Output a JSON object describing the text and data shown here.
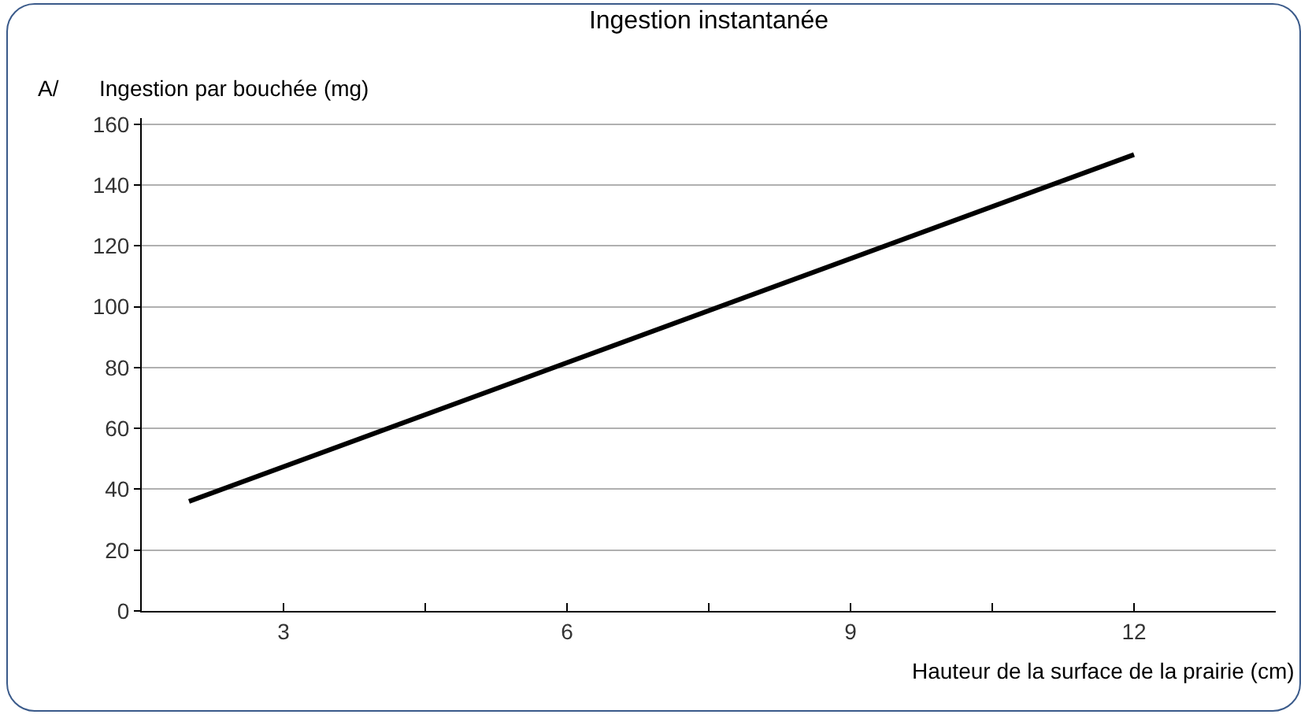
{
  "chart_data": {
    "type": "line",
    "title": "Ingestion instantanée",
    "xlabel": "Hauteur de la surface de la prairie (cm)",
    "ylabel": "Ingestion par bouchée (mg)",
    "annotations": [
      "A/"
    ],
    "x": [
      2,
      12
    ],
    "series": [
      {
        "color": "#000000",
        "values": [
          36,
          150
        ]
      }
    ],
    "xlim": [
      1.5,
      13.5
    ],
    "xticks": [
      3,
      {
        "value": 4.5,
        "label": null
      },
      6,
      {
        "value": 7.5,
        "label": null
      },
      9,
      {
        "value": 10.5,
        "label": null
      },
      12
    ],
    "ylim": [
      0,
      162
    ],
    "yticks": [
      0,
      20,
      40,
      60,
      80,
      100,
      120,
      140,
      160
    ],
    "grid": "y",
    "marker": "none",
    "line_style": "solid"
  }
}
